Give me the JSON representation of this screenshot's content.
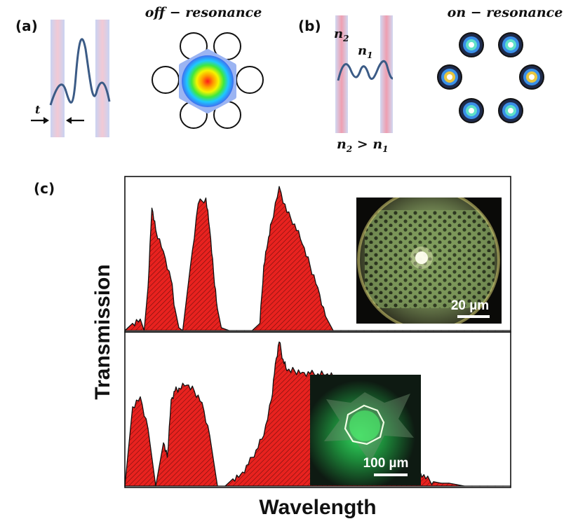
{
  "panel_a": {
    "label": "(a)",
    "thickness_label": "t",
    "mode_title": "off − resonance"
  },
  "panel_b": {
    "label": "(b)",
    "n2_label": "n",
    "n2_sub": "2",
    "n1_label": "n",
    "n1_sub": "1",
    "inequality_a": "n",
    "inequality_a_sub": "2",
    "inequality_op": " > ",
    "inequality_b": "n",
    "inequality_b_sub": "1",
    "mode_title": "on − resonance"
  },
  "panel_c": {
    "label": "(c)",
    "ylabel": "Transmission",
    "xlabel": "Wavelength",
    "inset_top_scale": "20 µm",
    "inset_bottom_scale": "100 µm"
  },
  "colors": {
    "fill": "#e8221f",
    "outline": "#111111",
    "cladding": "#c9d3f2",
    "wave": "#3b5b86"
  },
  "chart_data": [
    {
      "type": "area",
      "title": "",
      "xlabel": "Wavelength",
      "ylabel": "Transmission",
      "x": [
        0,
        2,
        4,
        5,
        6,
        7,
        8,
        10,
        12,
        13,
        14,
        15,
        17,
        19,
        21,
        22,
        23,
        24,
        25,
        27,
        29,
        31,
        33,
        35,
        36,
        37,
        38,
        40,
        42,
        44,
        46,
        48,
        50,
        52,
        54,
        56,
        58,
        60,
        62,
        64,
        66,
        68,
        70,
        72,
        74,
        76,
        78,
        80,
        82,
        84,
        86,
        88,
        90,
        92,
        94,
        96,
        98,
        100
      ],
      "values": [
        0.0,
        0.05,
        0.08,
        0.0,
        0.3,
        0.85,
        0.7,
        0.55,
        0.35,
        0.15,
        0.02,
        0.0,
        0.45,
        0.88,
        0.92,
        0.7,
        0.4,
        0.15,
        0.02,
        0.0,
        0.0,
        0.0,
        0.0,
        0.05,
        0.45,
        0.6,
        0.75,
        1.0,
        0.82,
        0.74,
        0.6,
        0.45,
        0.3,
        0.1,
        0.0,
        0.0,
        0.0,
        0.0,
        0.0,
        0.0,
        0.0,
        0.0,
        0.0,
        0.0,
        0.0,
        0.0,
        0.0,
        0.0,
        0.0,
        0.0,
        0.0,
        0.0,
        0.0,
        0.0,
        0.0,
        0.0,
        0.0,
        0.0
      ],
      "ylim": [
        0,
        1.05
      ]
    },
    {
      "type": "area",
      "title": "",
      "xlabel": "Wavelength",
      "ylabel": "Transmission",
      "x": [
        0,
        2,
        4,
        6,
        8,
        10,
        11,
        12,
        13,
        14,
        16,
        18,
        20,
        22,
        24,
        26,
        28,
        30,
        32,
        34,
        36,
        38,
        39,
        40,
        41,
        42,
        44,
        46,
        48,
        50,
        52,
        54,
        56,
        58,
        60,
        62,
        64,
        66,
        68,
        70,
        72,
        74,
        76,
        78,
        80,
        82,
        84,
        86,
        88,
        90,
        92,
        94,
        96,
        98,
        100
      ],
      "values": [
        0.0,
        0.55,
        0.62,
        0.4,
        0.0,
        0.3,
        0.2,
        0.6,
        0.66,
        0.68,
        0.7,
        0.66,
        0.58,
        0.35,
        0.0,
        0.0,
        0.05,
        0.08,
        0.15,
        0.25,
        0.35,
        0.6,
        0.85,
        1.0,
        0.88,
        0.8,
        0.8,
        0.79,
        0.78,
        0.78,
        0.77,
        0.76,
        0.74,
        0.72,
        0.7,
        0.66,
        0.62,
        0.58,
        0.52,
        0.45,
        0.35,
        0.22,
        0.12,
        0.05,
        0.03,
        0.02,
        0.02,
        0.01,
        0.0,
        0.0,
        0.0,
        0.0,
        0.0,
        0.0,
        0.0
      ],
      "ylim": [
        0,
        1.05
      ]
    }
  ]
}
